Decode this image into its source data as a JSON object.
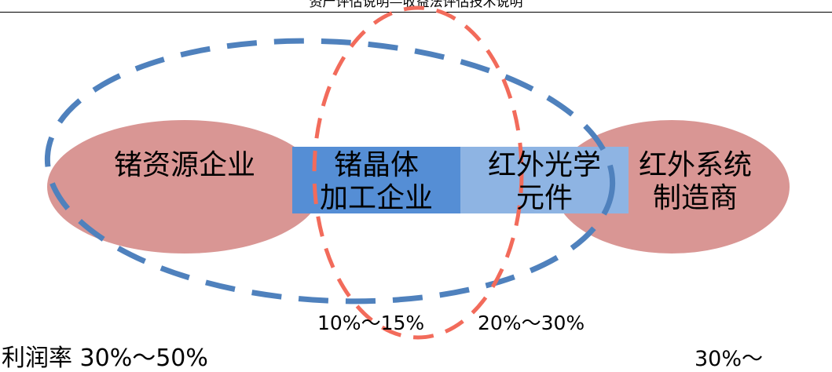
{
  "header": {
    "title": "资产评估说明—收益法评估技术说明"
  },
  "diagram": {
    "nodes": {
      "resource": "锗资源企业",
      "crystal_line1": "锗晶体",
      "crystal_line2": "加工企业",
      "optical_line1": "红外光学",
      "optical_line2": "元件",
      "system_line1": "红外系统",
      "system_line2": "制造商"
    },
    "margins": {
      "resource": "利润率 30%～50%",
      "crystal": "10%～15%",
      "optical": "20%～30%",
      "system": "30%～"
    },
    "colors": {
      "ellipse_fill": "#d99694",
      "crystal_box": "#558ed5",
      "optical_box": "#8eb4e3",
      "blue_dash": "#4f81bd",
      "red_dash": "#f26b5b"
    }
  }
}
